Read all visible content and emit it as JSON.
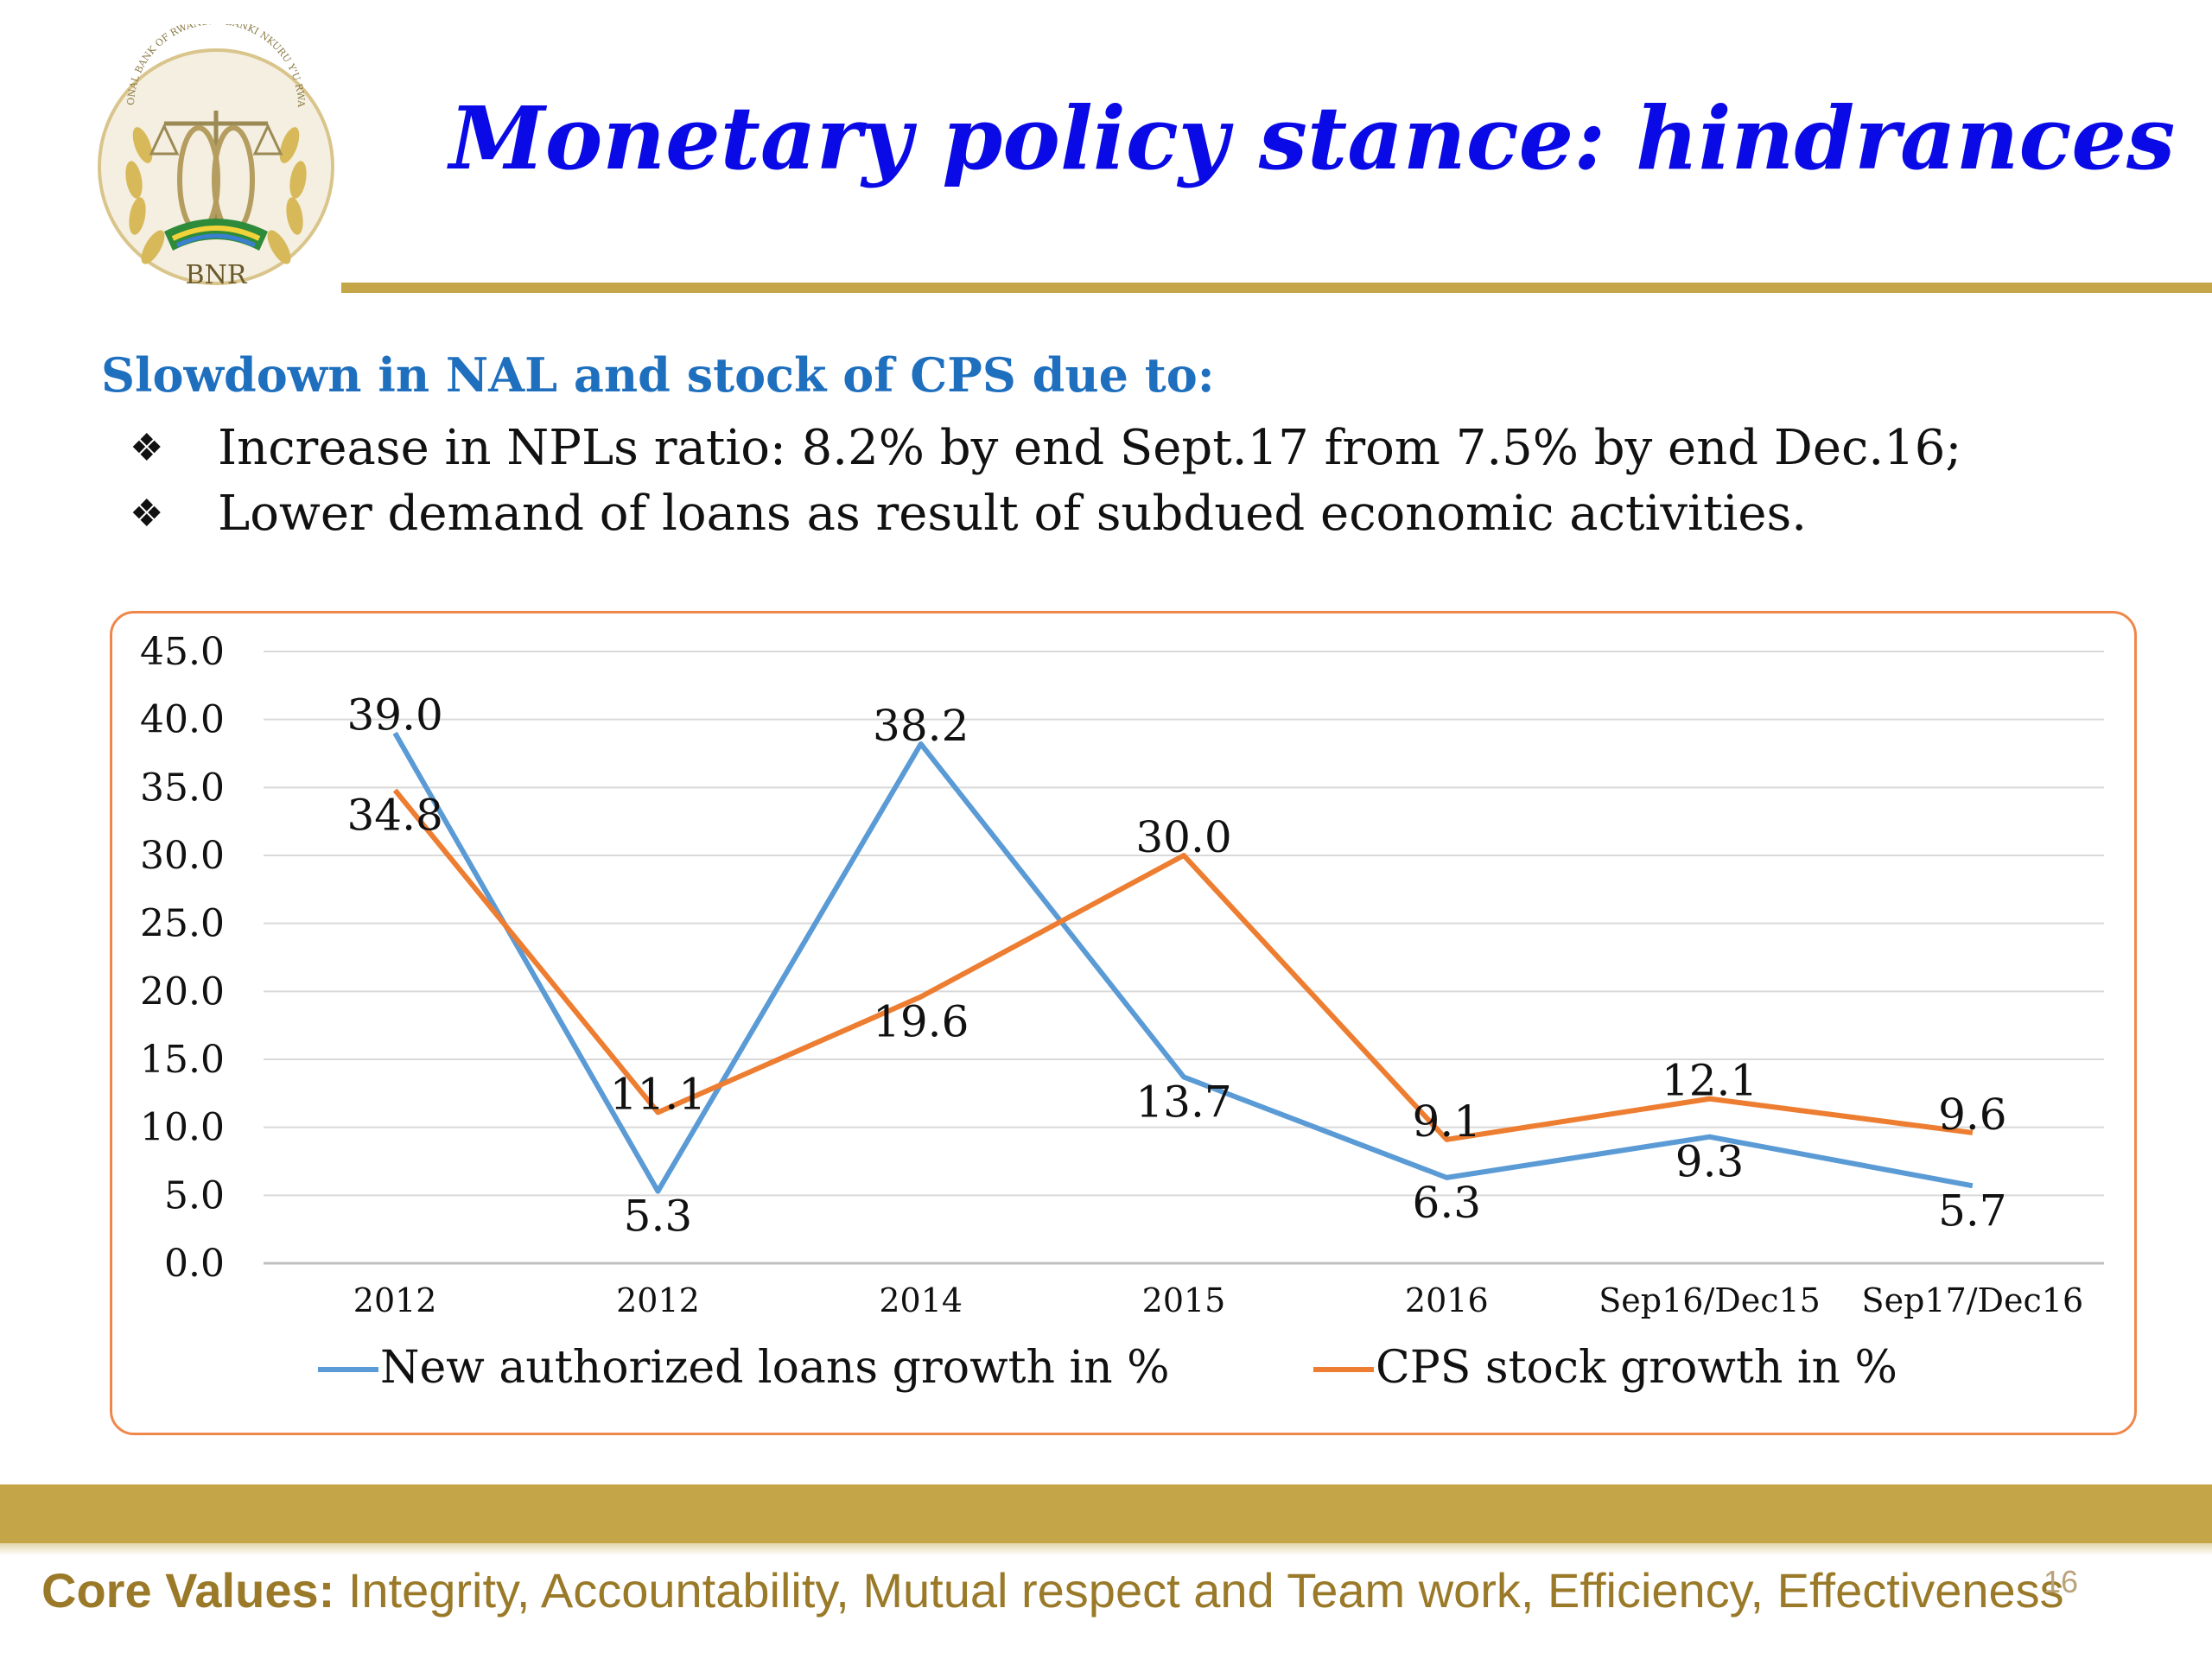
{
  "header": {
    "title": "Monetary policy stance: hindrances",
    "logo_text": "BNR",
    "logo_motto": "NATIONAL BANK OF RWANDA · BANKI NKURU Y'U RWANDA"
  },
  "content": {
    "subtitle": "Slowdown in NAL and stock of CPS due to:",
    "bullets": [
      "Increase in NPLs ratio: 8.2% by end Sept.17 from 7.5% by end Dec.16;",
      "Lower demand of loans as result of subdued economic activities."
    ],
    "bullet_marker": "❖"
  },
  "chart_data": {
    "type": "line",
    "categories": [
      "2012",
      "2012",
      "2014",
      "2015",
      "2016",
      "Sep16/Dec15",
      "Sep17/Dec16"
    ],
    "series": [
      {
        "name": "New authorized loans growth in %",
        "color": "#5b9bd5",
        "values": [
          39.0,
          5.3,
          38.2,
          13.7,
          6.3,
          9.3,
          5.7
        ]
      },
      {
        "name": "CPS stock growth in %",
        "color": "#ed7d31",
        "values": [
          34.8,
          11.1,
          19.6,
          30.0,
          9.1,
          12.1,
          9.6
        ]
      }
    ],
    "yticks": [
      "0.0",
      "5.0",
      "10.0",
      "15.0",
      "20.0",
      "25.0",
      "30.0",
      "35.0",
      "40.0",
      "45.0"
    ],
    "ylim": [
      0,
      45
    ],
    "grid": true,
    "legend": "bottom",
    "data_labels": true
  },
  "footer": {
    "label": "Core Values:",
    "text": " Integrity, Accountability, Mutual respect and Team work, Efficiency, Effectiveness",
    "page": "16"
  },
  "colors": {
    "title": "#0a0ae6",
    "subtitle": "#1f6fbf",
    "gold": "#c4a548",
    "chart_border": "#f0874a"
  }
}
